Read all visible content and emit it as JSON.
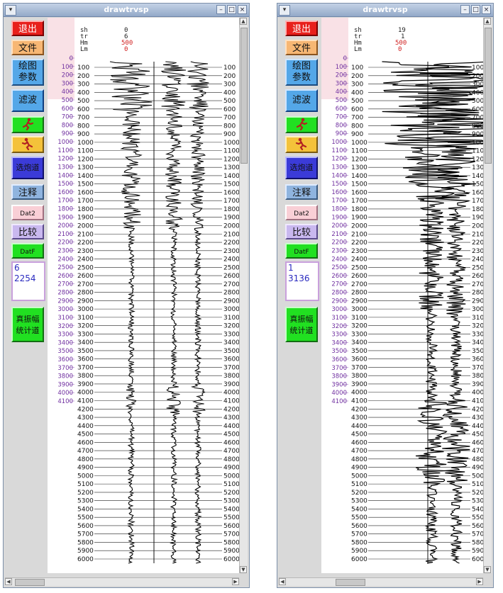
{
  "windows": [
    {
      "title": "drawtrvsp",
      "params": {
        "sh": "0",
        "tr": "6",
        "hm": "500",
        "lm": "0"
      },
      "info_box": {
        "line1": "6",
        "line2": "2254"
      }
    },
    {
      "title": "drawtrvsp",
      "params": {
        "sh": "19",
        "tr": "1",
        "hm": "500",
        "lm": "0"
      },
      "info_box": {
        "line1": "1",
        "line2": "3136"
      }
    }
  ],
  "param_labels": {
    "sh": "sh",
    "tr": "tr",
    "hm": "Hm",
    "lm": "Lm"
  },
  "buttons": {
    "exit": "退出",
    "file": "文件",
    "plot_params_1": "绘图",
    "plot_params_2": "参数",
    "filter": "滤波",
    "select_shot": "选炮道",
    "annotate": "注释",
    "dat2": "Dat2",
    "compare": "比较",
    "datf": "DatF",
    "true_amp_1": "真振幅",
    "true_amp_2": "统计道"
  },
  "icons": [
    "runner-icon",
    "runner-icon"
  ],
  "colors": {
    "exit_bg": "#e8201c",
    "exit_text": "#ffffff",
    "file_bg": "#f7b774",
    "blue_bg": "#54a7e8",
    "green_bg": "#21e021",
    "pink_bg": "#f9cfd6",
    "lavender_bg": "#c9b8ef",
    "annotate_bg": "#8fb4df",
    "axis_purple": "#7030a0",
    "param_red": "#d02020"
  },
  "depth_axis": {
    "pink_ticks_min": 0,
    "pink_ticks_max": 4100,
    "pink_ticks_step": 100,
    "black_ticks_min": 100,
    "black_ticks_max": 6000,
    "black_ticks_step": 100
  }
}
